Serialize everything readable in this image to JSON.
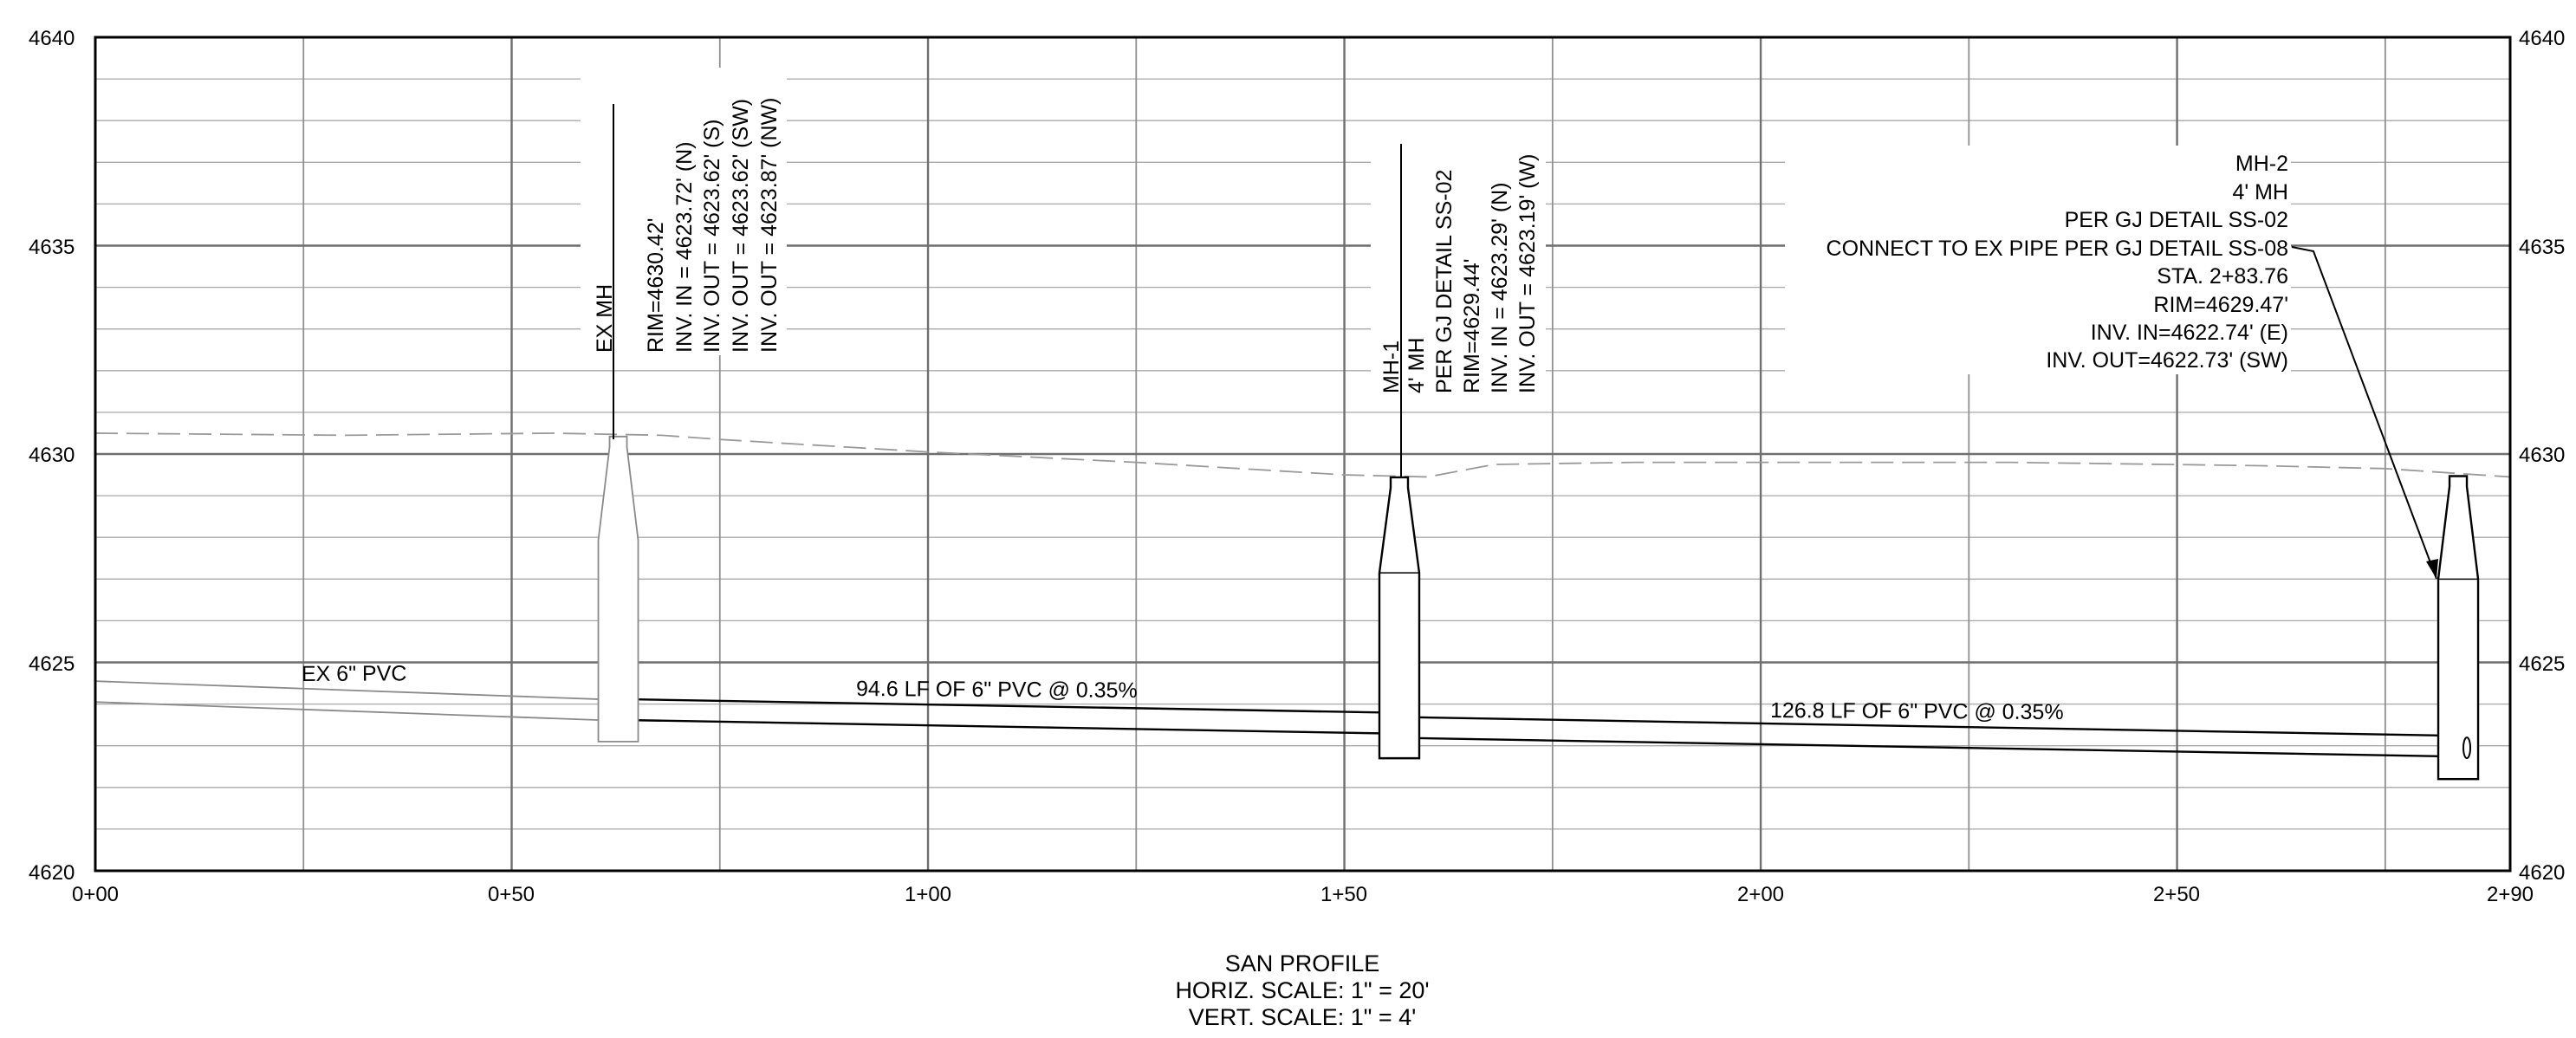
{
  "title_block": {
    "title": "SAN PROFILE",
    "horiz_scale": "HORIZ. SCALE: 1\" = 20'",
    "vert_scale": "VERT. SCALE: 1\" = 4'"
  },
  "axes": {
    "y_ticks": [
      "4620",
      "4625",
      "4630",
      "4635",
      "4640"
    ],
    "x_ticks": [
      "0+00",
      "0+50",
      "1+00",
      "1+50",
      "2+00",
      "2+50",
      "2+90"
    ]
  },
  "structures": {
    "ex_mh": {
      "name": "EX MH",
      "rim": "RIM=4630.42'",
      "inv_in_n": "INV. IN = 4623.72' (N)",
      "inv_out_s": "INV. OUT = 4623.62' (S)",
      "inv_out_sw": "INV. OUT = 4623.62' (SW)",
      "inv_out_nw": "INV. OUT = 4623.87' (NW)"
    },
    "mh1": {
      "name": "MH-1",
      "size": "4' MH",
      "detail": "PER GJ DETAIL SS-02",
      "rim": "RIM=4629.44'",
      "inv_in": "INV. IN = 4623.29' (N)",
      "inv_out": "INV. OUT = 4623.19' (W)"
    },
    "mh2": {
      "name": "MH-2",
      "size": "4' MH",
      "detail": "PER GJ DETAIL SS-02",
      "connect": "CONNECT TO EX PIPE PER GJ DETAIL SS-08",
      "station": "STA. 2+83.76",
      "rim": "RIM=4629.47'",
      "inv_in": "INV. IN=4622.74' (E)",
      "inv_out": "INV. OUT=4622.73' (SW)"
    }
  },
  "pipes": {
    "existing": "EX 6\" PVC",
    "segment1": "94.6 LF OF 6\" PVC @ 0.35%",
    "segment2": "126.8 LF OF 6\" PVC @ 0.35%"
  },
  "chart_data": {
    "type": "profile",
    "x_unit": "station (ft)",
    "y_unit": "elevation (ft)",
    "xlim": [
      0,
      290
    ],
    "ylim": [
      4620,
      4640
    ],
    "x_major_step": 50,
    "x_minor_step": 25,
    "y_major_step": 5,
    "y_minor_step": 1,
    "existing_ground": [
      [
        0,
        4630.5
      ],
      [
        30,
        4630.45
      ],
      [
        55,
        4630.5
      ],
      [
        68,
        4630.45
      ],
      [
        75,
        4630.35
      ],
      [
        100,
        4630.05
      ],
      [
        125,
        4629.8
      ],
      [
        150,
        4629.5
      ],
      [
        160,
        4629.45
      ],
      [
        168,
        4629.75
      ],
      [
        185,
        4629.8
      ],
      [
        230,
        4629.8
      ],
      [
        260,
        4629.72
      ],
      [
        275,
        4629.65
      ],
      [
        290,
        4629.45
      ]
    ],
    "structures": [
      {
        "id": "ex_mh",
        "station": 62.8,
        "rim": 4630.42,
        "bottom": 4623.1,
        "existing": true
      },
      {
        "id": "mh1",
        "station": 156.6,
        "rim": 4629.44,
        "bottom": 4622.7,
        "existing": false
      },
      {
        "id": "mh2",
        "station": 283.76,
        "rim": 4629.47,
        "bottom": 4622.2,
        "existing": false
      }
    ],
    "pipes": [
      {
        "from": 0,
        "to": 62.8,
        "inv_start": 4624.05,
        "inv_end": 4623.6,
        "dia_ft": 0.5,
        "existing": true
      },
      {
        "from": 62.8,
        "to": 156.6,
        "inv_start": 4623.62,
        "inv_end": 4623.29,
        "dia_ft": 0.5,
        "existing": false
      },
      {
        "from": 156.6,
        "to": 283.76,
        "inv_start": 4623.19,
        "inv_end": 4622.74,
        "dia_ft": 0.5,
        "existing": false
      }
    ]
  }
}
